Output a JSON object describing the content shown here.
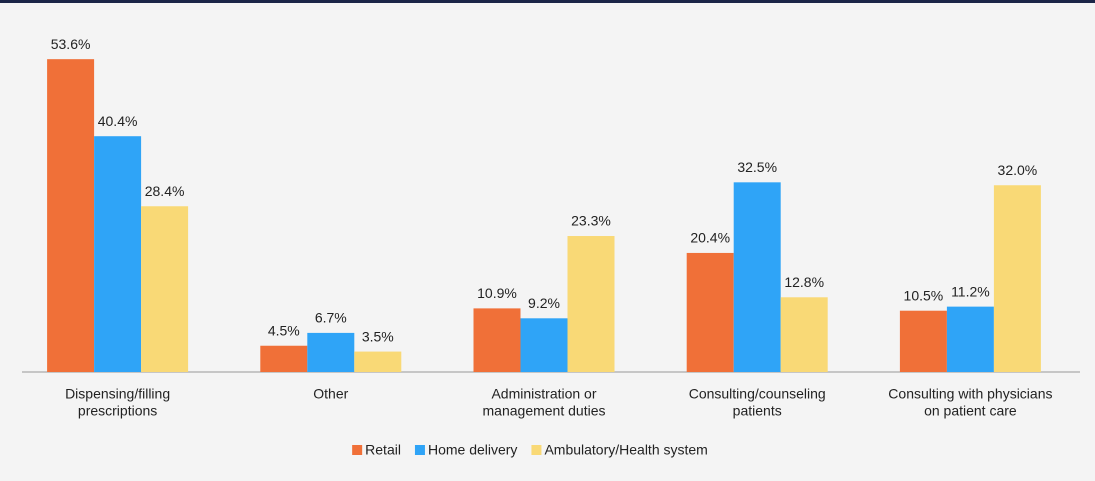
{
  "chart_data": {
    "type": "bar",
    "categories": [
      [
        "Dispensing/filling",
        "prescriptions"
      ],
      [
        "Other"
      ],
      [
        "Administration or",
        "management duties"
      ],
      [
        "Consulting/counseling",
        "patients"
      ],
      [
        "Consulting with physicians",
        "on patient care"
      ]
    ],
    "series": [
      {
        "name": "Retail",
        "color": "#f07038",
        "values": [
          53.6,
          4.5,
          10.9,
          20.4,
          10.5
        ],
        "value_labels": [
          "53.6%",
          "4.5%",
          "10.9%",
          "20.4%",
          "10.5%"
        ]
      },
      {
        "name": "Home delivery",
        "color": "#2fa4f7",
        "values": [
          40.4,
          6.7,
          9.2,
          32.5,
          11.2
        ],
        "value_labels": [
          "40.4%",
          "6.7%",
          "9.2%",
          "32.5%",
          "11.2%"
        ]
      },
      {
        "name": "Ambulatory/Health system",
        "color": "#f9d976",
        "values": [
          28.4,
          3.5,
          23.3,
          12.8,
          32.0
        ],
        "value_labels": [
          "28.4%",
          "3.5%",
          "23.3%",
          "12.8%",
          "32.0%"
        ]
      }
    ],
    "ylim": [
      0,
      55
    ],
    "legend": "bottom"
  }
}
